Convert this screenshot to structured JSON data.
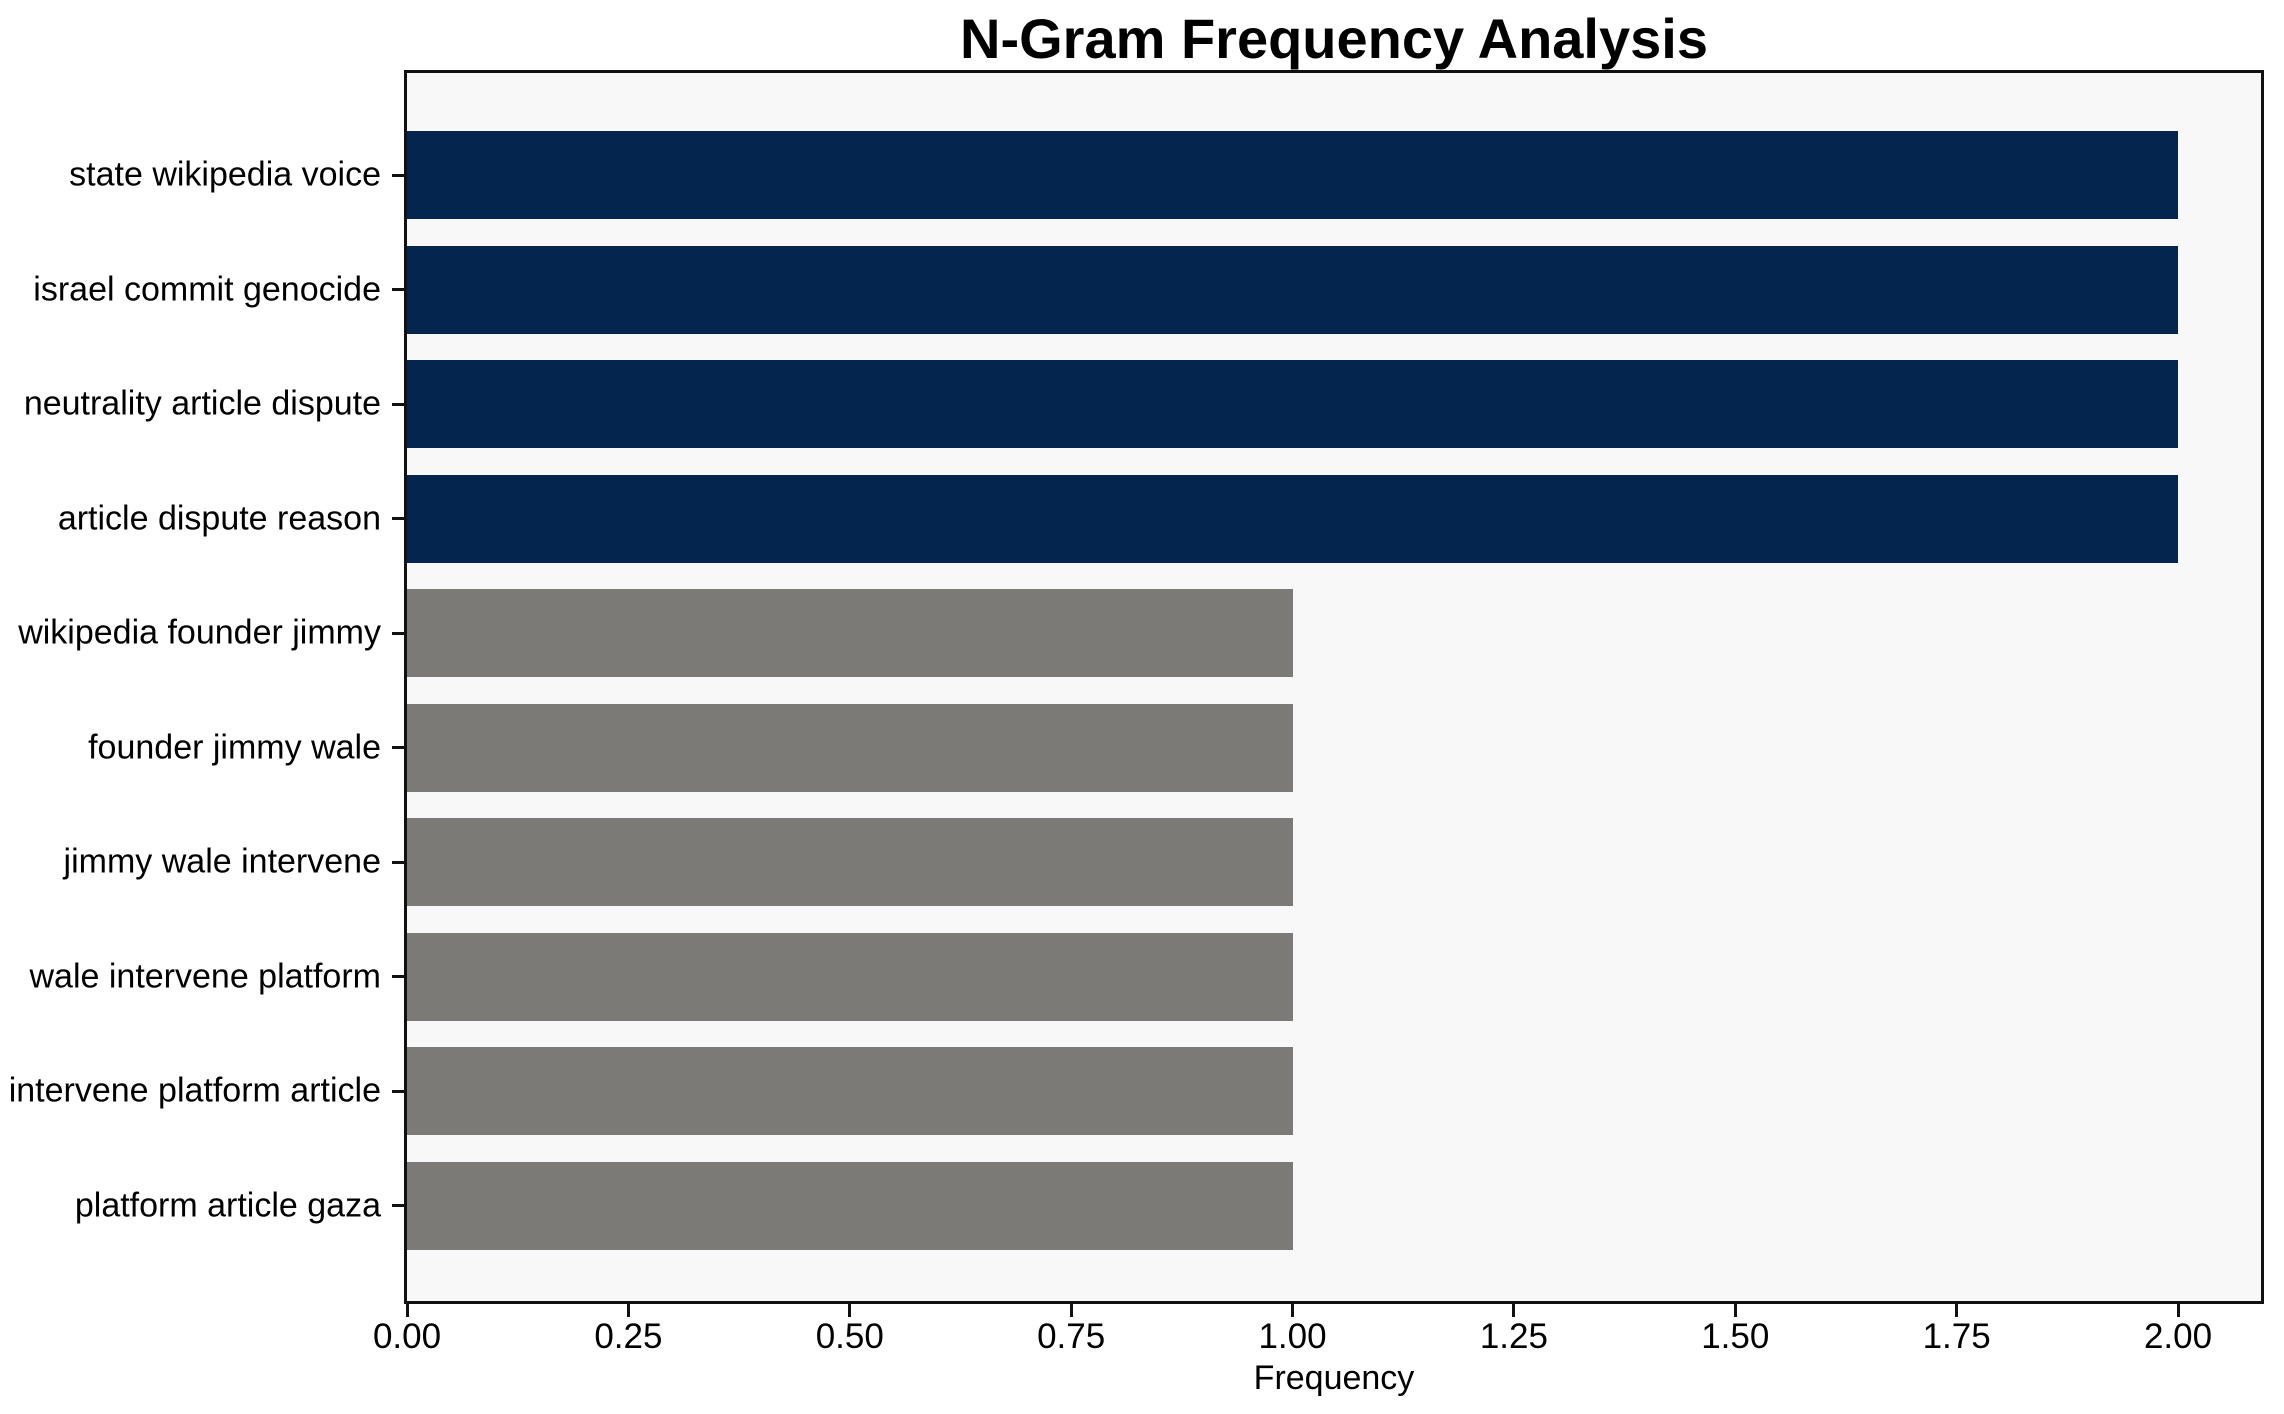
{
  "chart_data": {
    "type": "bar",
    "orientation": "horizontal",
    "title": "N-Gram Frequency Analysis",
    "xlabel": "Frequency",
    "ylabel": "",
    "categories": [
      "state wikipedia voice",
      "israel commit genocide",
      "neutrality article dispute",
      "article dispute reason",
      "wikipedia founder jimmy",
      "founder jimmy wale",
      "jimmy wale intervene",
      "wale intervene platform",
      "intervene platform article",
      "platform article gaza"
    ],
    "values": [
      2,
      2,
      2,
      2,
      1,
      1,
      1,
      1,
      1,
      1
    ],
    "bar_colors": [
      "#03254e",
      "#03254e",
      "#03254e",
      "#03254e",
      "#7b7a77",
      "#7b7a77",
      "#7b7a77",
      "#7b7a77",
      "#7b7a77",
      "#7b7a77"
    ],
    "xlim": [
      0,
      2.1
    ],
    "xtick_values": [
      0,
      0.25,
      0.5,
      0.75,
      1.0,
      1.25,
      1.5,
      1.75,
      2.0
    ],
    "xtick_labels": [
      "0.00",
      "0.25",
      "0.50",
      "0.75",
      "1.00",
      "1.25",
      "1.50",
      "1.75",
      "2.00"
    ],
    "grid": false,
    "legend_position": "none",
    "colors": {
      "bar_high": "#03254e",
      "bar_low": "#7b7a77",
      "plot_background": "#f7f8f7",
      "figure_background": "#ffffff",
      "axis_line": "#111111",
      "text": "#000000"
    }
  }
}
